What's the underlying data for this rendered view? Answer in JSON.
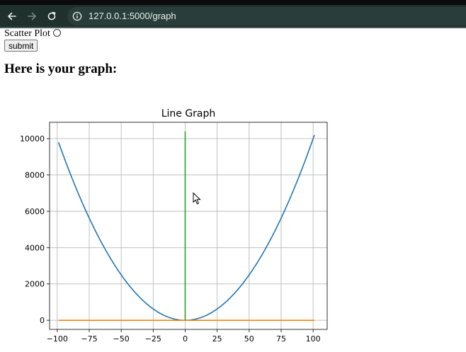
{
  "browser": {
    "url_host": "127.0.0.1",
    "url_path": ":5000/graph",
    "back_icon": "arrow-left-icon",
    "forward_icon": "arrow-right-icon",
    "reload_icon": "reload-icon",
    "site_info_icon": "info-circle-icon"
  },
  "form": {
    "scatter_label": "Scatter Plot",
    "scatter_selected": false,
    "submit_label": "submit"
  },
  "page": {
    "heading": "Here is your graph:"
  },
  "colors": {
    "series_blue": "#1f77b4",
    "series_orange": "#ff7f0e",
    "series_green": "#2ca02c",
    "grid": "#b0b0b0"
  },
  "chart_data": {
    "type": "line",
    "title": "Line Graph",
    "xlabel": "",
    "ylabel": "",
    "xlim": [
      -106,
      111
    ],
    "ylim": [
      -500,
      10900
    ],
    "xticks": [
      -100,
      -75,
      -50,
      -25,
      0,
      25,
      50,
      75,
      100
    ],
    "yticks": [
      0,
      2000,
      4000,
      6000,
      8000,
      10000
    ],
    "grid": true,
    "series": [
      {
        "color": "#1f77b4",
        "x": [
          -99,
          -90,
          -80,
          -70,
          -60,
          -50,
          -40,
          -30,
          -20,
          -10,
          0,
          10,
          20,
          30,
          40,
          50,
          60,
          70,
          80,
          90,
          101
        ],
        "y": [
          9801,
          8100,
          6400,
          4900,
          3600,
          2500,
          1600,
          900,
          400,
          100,
          0,
          100,
          400,
          900,
          1600,
          2500,
          3600,
          4900,
          6400,
          8100,
          10201
        ]
      },
      {
        "color": "#ff7f0e",
        "x": [
          -99,
          101
        ],
        "y": [
          0,
          0
        ]
      },
      {
        "color": "#2ca02c",
        "x": [
          0,
          0
        ],
        "y": [
          0,
          10400
        ]
      }
    ]
  }
}
